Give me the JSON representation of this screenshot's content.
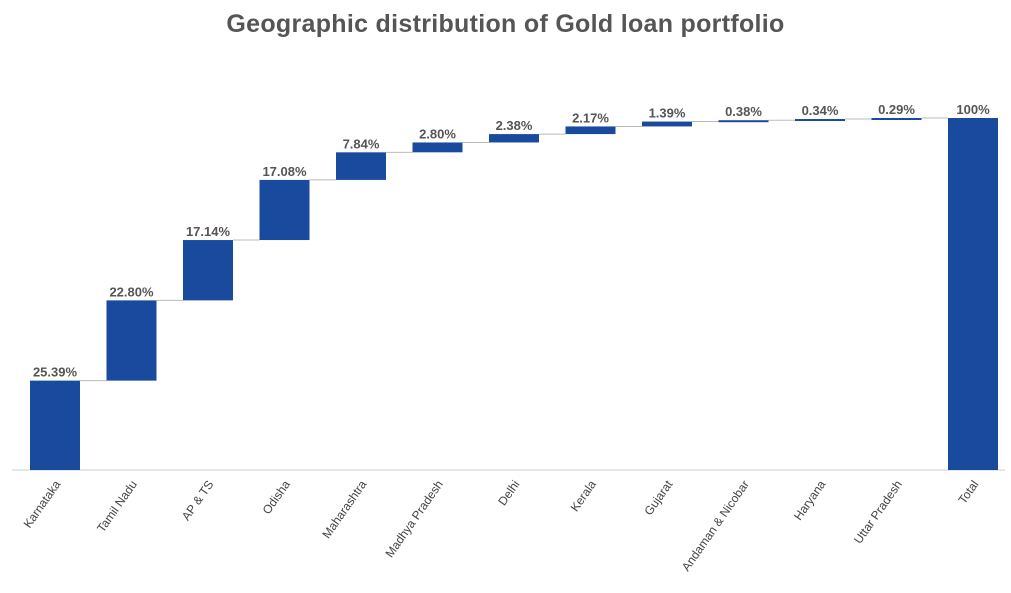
{
  "chart_data": {
    "type": "waterfall",
    "title": "Geographic distribution of Gold loan portfolio",
    "categories": [
      "Karnataka",
      "Tamil Nadu",
      "AP & TS",
      "Odisha",
      "Maharashtra",
      "Madhya Pradesh",
      "Delhi",
      "Kerala",
      "Gujarat",
      "Andaman & Nicobar",
      "Haryana",
      "Uttar Pradesh",
      "Total"
    ],
    "values": [
      25.39,
      22.8,
      17.14,
      17.08,
      7.84,
      2.8,
      2.38,
      2.17,
      1.39,
      0.38,
      0.34,
      0.29,
      100
    ],
    "data_labels": [
      "25.39%",
      "22.80%",
      "17.14%",
      "17.08%",
      "7.84%",
      "2.80%",
      "2.38%",
      "2.17%",
      "1.39%",
      "0.38%",
      "0.34%",
      "0.29%",
      "100%"
    ],
    "total_index": 12,
    "ylim": [
      0,
      100
    ],
    "grid": false,
    "legend": "none",
    "colors": {
      "bar": "#1A4A9E",
      "connector": "#BBBBBB",
      "axis": "#CCCCCC",
      "title": "#555555",
      "label": "#555555"
    }
  }
}
